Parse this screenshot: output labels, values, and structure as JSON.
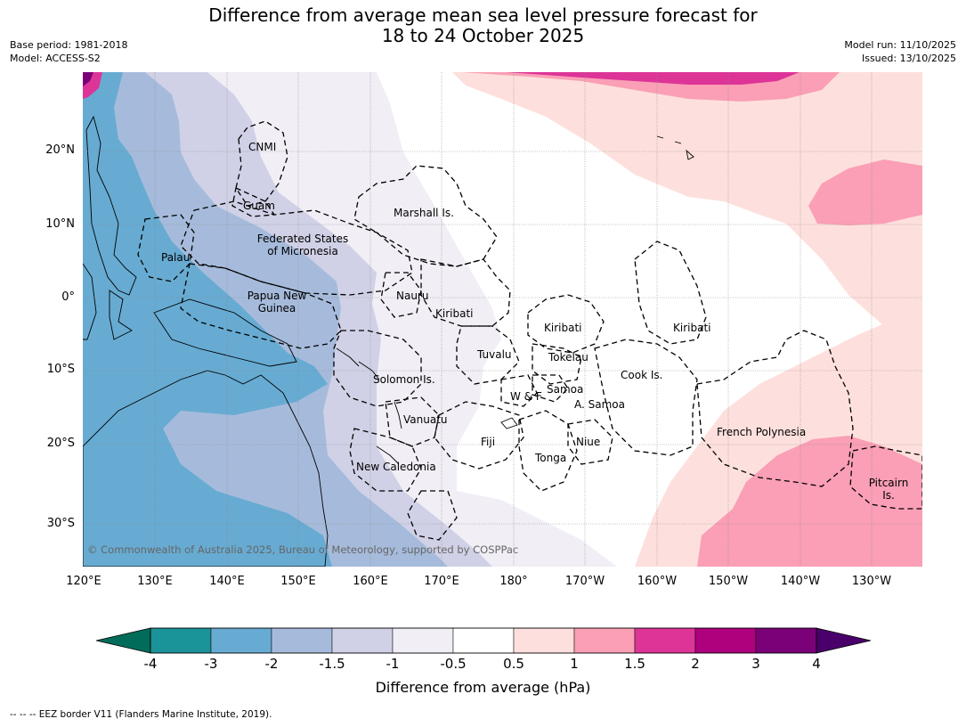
{
  "title_line1": "Difference from average mean sea level pressure forecast for",
  "title_line2": "18 to 24 October 2025",
  "base_period": "Base period: 1981-2018",
  "model": "Model: ACCESS-S2",
  "model_run": "Model run: 11/10/2025",
  "issued": "Issued: 13/10/2025",
  "lat_ticks": [
    "20°N",
    "10°N",
    "0°",
    "10°S",
    "20°S",
    "30°S"
  ],
  "lon_ticks": [
    "120°E",
    "130°E",
    "140°E",
    "150°E",
    "160°E",
    "170°E",
    "180°",
    "170°W",
    "160°W",
    "150°W",
    "140°W",
    "130°W"
  ],
  "map_labels": {
    "cnmi": "CNMI",
    "guam": "Guam",
    "marshall": "Marshall Is.",
    "fsm_1": "Federated States",
    "fsm_2": "of Micronesia",
    "palau": "Palau",
    "png_1": "Papua New",
    "png_2": "Guinea",
    "nauru": "Nauru",
    "kiribati_w": "Kiribati",
    "kiribati_c": "Kiribati",
    "kiribati_e": "Kiribati",
    "tuvalu": "Tuvalu",
    "tokelau": "Tokelau",
    "cook": "Cook Is.",
    "solomon": "Solomon Is.",
    "wf": "W & F",
    "samoa": "Samoa",
    "asamoa": "A. Samoa",
    "vanuatu": "Vanuatu",
    "fiji": "Fiji",
    "niue": "Niue",
    "tonga": "Tonga",
    "newcal": "New Caledonia",
    "frpoly": "French Polynesia",
    "pitcairn_1": "Pitcairn",
    "pitcairn_2": "Is."
  },
  "copyright": "© Commonwealth of Australia 2025, Bureau of Meteorology, supported by COSPPac",
  "colorbar": {
    "ticks": [
      "-4",
      "-3",
      "-2",
      "-1.5",
      "-1",
      "-0.5",
      "0.5",
      "1",
      "1.5",
      "2",
      "3",
      "4"
    ],
    "colors": [
      "#1a9399",
      "#67abd2",
      "#a6bbdb",
      "#d0d1e6",
      "#f1eef6",
      "#ffffff",
      "#fde0dd",
      "#fa9fb5",
      "#dd3497",
      "#ae017e",
      "#7a0177"
    ],
    "under_color": "#016c59",
    "over_color": "#49006a",
    "label": "Difference from average (hPa)"
  },
  "footnote": "--  --  -- EEZ border V11 (Flanders Marine Institute, 2019)."
}
